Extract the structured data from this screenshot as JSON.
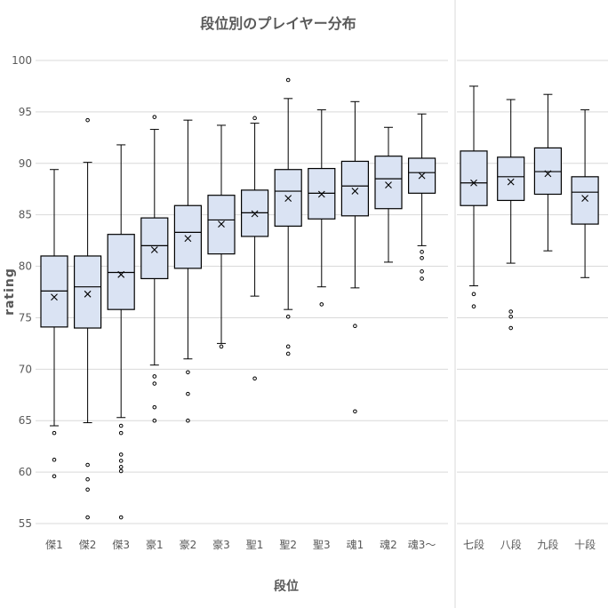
{
  "chart_data": {
    "type": "box",
    "title": "段位別のプレイヤー分布",
    "xlabel": "段位",
    "ylabel": "rating",
    "ylim": [
      55,
      100
    ],
    "yticks": [
      55,
      60,
      65,
      70,
      75,
      80,
      85,
      90,
      95,
      100
    ],
    "grid": true,
    "colors": {
      "box_fill": "#dae3f3",
      "box_stroke": "#000000",
      "grid": "#d9d9d9",
      "text": "#595959",
      "divider": "#d9d9d9"
    },
    "panels": [
      {
        "name": "left",
        "categories": [
          {
            "label": "傑1",
            "min": 64.5,
            "q1": 74.1,
            "median": 77.6,
            "q3": 81.0,
            "max": 89.4,
            "mean": 77.0,
            "outliers": [
              63.8,
              61.2,
              59.6
            ]
          },
          {
            "label": "傑2",
            "min": 64.8,
            "q1": 74.0,
            "median": 78.0,
            "q3": 81.0,
            "max": 90.1,
            "mean": 77.3,
            "outliers": [
              94.2,
              60.7,
              59.3,
              58.3,
              55.6
            ]
          },
          {
            "label": "傑3",
            "min": 65.3,
            "q1": 75.8,
            "median": 79.4,
            "q3": 83.1,
            "max": 91.8,
            "mean": 79.2,
            "outliers": [
              64.5,
              63.8,
              61.7,
              61.1,
              60.5,
              60.1,
              55.6
            ]
          },
          {
            "label": "豪1",
            "min": 70.4,
            "q1": 78.8,
            "median": 82.0,
            "q3": 84.7,
            "max": 93.3,
            "mean": 81.6,
            "outliers": [
              94.5,
              69.3,
              68.6,
              66.3,
              65.0
            ]
          },
          {
            "label": "豪2",
            "min": 71.0,
            "q1": 79.8,
            "median": 83.3,
            "q3": 85.9,
            "max": 94.2,
            "mean": 82.7,
            "outliers": [
              69.7,
              67.6,
              65.0
            ]
          },
          {
            "label": "豪3",
            "min": 72.5,
            "q1": 81.2,
            "median": 84.5,
            "q3": 86.9,
            "max": 93.7,
            "mean": 84.1,
            "outliers": [
              72.2
            ]
          },
          {
            "label": "聖1",
            "min": 77.1,
            "q1": 82.9,
            "median": 85.2,
            "q3": 87.4,
            "max": 93.9,
            "mean": 85.1,
            "outliers": [
              94.4,
              69.1
            ]
          },
          {
            "label": "聖2",
            "min": 75.8,
            "q1": 83.9,
            "median": 87.3,
            "q3": 89.4,
            "max": 96.3,
            "mean": 86.6,
            "outliers": [
              98.1,
              75.1,
              72.2,
              71.5
            ]
          },
          {
            "label": "聖3",
            "min": 78.0,
            "q1": 84.6,
            "median": 87.1,
            "q3": 89.5,
            "max": 95.2,
            "mean": 87.0,
            "outliers": [
              76.3
            ]
          },
          {
            "label": "魂1",
            "min": 77.9,
            "q1": 84.9,
            "median": 87.8,
            "q3": 90.2,
            "max": 96.0,
            "mean": 87.3,
            "outliers": [
              74.2,
              65.9
            ]
          },
          {
            "label": "魂2",
            "min": 80.4,
            "q1": 85.6,
            "median": 88.5,
            "q3": 90.7,
            "max": 93.5,
            "mean": 87.9,
            "outliers": []
          },
          {
            "label": "魂3～",
            "min": 82.0,
            "q1": 87.1,
            "median": 89.1,
            "q3": 90.5,
            "max": 94.8,
            "mean": 88.8,
            "outliers": [
              81.4,
              80.8,
              79.5,
              78.8
            ]
          }
        ]
      },
      {
        "name": "right",
        "categories": [
          {
            "label": "七段",
            "min": 78.1,
            "q1": 85.9,
            "median": 88.1,
            "q3": 91.2,
            "max": 97.5,
            "mean": 88.1,
            "outliers": [
              77.3,
              76.1
            ]
          },
          {
            "label": "八段",
            "min": 80.3,
            "q1": 86.4,
            "median": 88.7,
            "q3": 90.6,
            "max": 96.2,
            "mean": 88.2,
            "outliers": [
              75.6,
              75.1,
              74.0
            ]
          },
          {
            "label": "九段",
            "min": 81.5,
            "q1": 87.0,
            "median": 89.2,
            "q3": 91.5,
            "max": 96.7,
            "mean": 89.0,
            "outliers": []
          },
          {
            "label": "十段",
            "min": 78.9,
            "q1": 84.1,
            "median": 87.2,
            "q3": 88.7,
            "max": 95.2,
            "mean": 86.6,
            "outliers": []
          }
        ]
      }
    ]
  }
}
